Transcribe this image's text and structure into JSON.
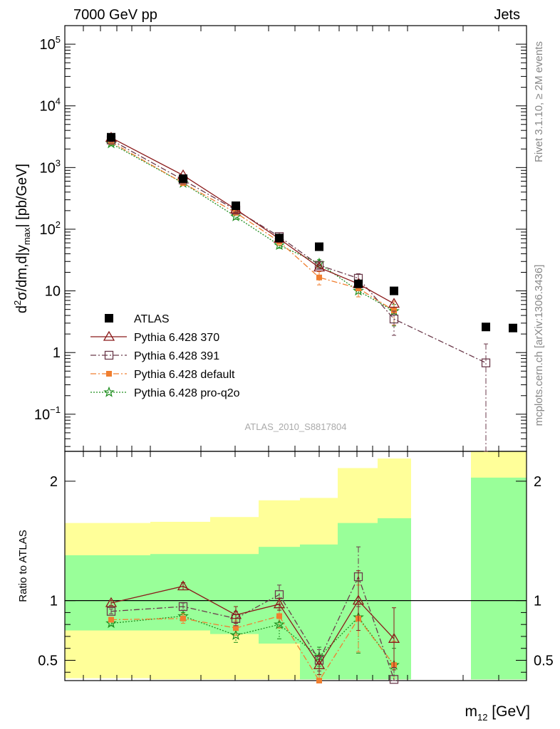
{
  "header": {
    "energy_label": "7000 GeV pp",
    "category_label": "Jets"
  },
  "side_text": {
    "rivet": "Rivet 3.1.10, ≥ 2M events",
    "mcplots": "mcplots.cern.ch [arXiv:1306.3436]"
  },
  "analysis_id": "ATLAS_2010_S8817804",
  "colors": {
    "atlas": "#000000",
    "p370": "#8b1a1a",
    "p391": "#6b3a4b",
    "pdefault": "#f07f30",
    "pq2o": "#1f8f1f",
    "band_yellow": "#ffff99",
    "band_green": "#99ff99"
  },
  "chart_data": [
    {
      "type": "scatter",
      "panel": "main",
      "ylabel_parts": {
        "a": "d",
        "b": "2",
        "c": "σ/dm,d|y",
        "d": "max",
        "e": "| [pb/GeV]"
      },
      "yscale": "log",
      "ylim": [
        0.025,
        200000
      ],
      "y_ticks": [
        {
          "value": 100000,
          "base": "10",
          "exp": "5"
        },
        {
          "value": 10000,
          "base": "10",
          "exp": "4"
        },
        {
          "value": 1000,
          "base": "10",
          "exp": "3"
        },
        {
          "value": 100,
          "base": "10",
          "exp": "2"
        },
        {
          "value": 10,
          "base": "10",
          "exp": ""
        },
        {
          "value": 1,
          "base": "1",
          "exp": ""
        },
        {
          "value": 0.1,
          "base": "10",
          "exp": "−1"
        }
      ],
      "x_bins": [
        1,
        2,
        3,
        4,
        5,
        6,
        7,
        8,
        9,
        10
      ],
      "legend": {
        "placement": "lower-left",
        "entries": [
          {
            "key": "atlas",
            "label": "ATLAS"
          },
          {
            "key": "p370",
            "label": "Pythia 6.428 370"
          },
          {
            "key": "p391",
            "label": "Pythia 6.428 391"
          },
          {
            "key": "pdefault",
            "label": "Pythia 6.428 default"
          },
          {
            "key": "pq2o",
            "label": "Pythia 6.428 pro-q2o"
          }
        ]
      },
      "series": [
        {
          "key": "atlas",
          "marker": "square-filled",
          "bins": [
            1,
            2,
            3,
            4,
            5,
            6,
            7,
            8,
            9
          ],
          "values": [
            3100,
            660,
            240,
            72,
            52,
            13,
            10,
            2.6,
            2.5
          ]
        },
        {
          "key": "p370",
          "marker": "triangle-open",
          "line": "solid",
          "bins": [
            1,
            2,
            3,
            4,
            5,
            6,
            7
          ],
          "values": [
            3050,
            750,
            210,
            70,
            24,
            13,
            6.2
          ]
        },
        {
          "key": "p391",
          "marker": "square-open",
          "line": "dashdot",
          "bins": [
            1,
            2,
            3,
            4,
            5,
            6,
            7,
            8
          ],
          "values": [
            2800,
            630,
            205,
            76,
            26,
            16,
            3.5,
            0.68
          ],
          "err_up": [
            200,
            40,
            15,
            7,
            3,
            3,
            1.2,
            0.7
          ],
          "err_down": [
            200,
            40,
            15,
            7,
            3,
            3,
            1.6,
            0.66
          ]
        },
        {
          "key": "pdefault",
          "marker": "square-small",
          "line": "dashdot",
          "bins": [
            1,
            2,
            3,
            4,
            5,
            6,
            7
          ],
          "values": [
            2600,
            560,
            185,
            63,
            16.5,
            11,
            4.8
          ],
          "err_up": [
            150,
            35,
            15,
            8,
            4,
            3,
            2
          ],
          "err_down": [
            150,
            35,
            15,
            8,
            4,
            3,
            2
          ]
        },
        {
          "key": "pq2o",
          "marker": "star",
          "line": "dotted",
          "bins": [
            1,
            2,
            3,
            4,
            5,
            6,
            7
          ],
          "values": [
            2450,
            560,
            160,
            55,
            28,
            10,
            4.7
          ],
          "err_up": [
            150,
            35,
            15,
            6,
            4,
            2,
            1.3
          ],
          "err_down": [
            150,
            35,
            15,
            6,
            4,
            2,
            2
          ]
        }
      ]
    },
    {
      "type": "scatter",
      "panel": "ratio",
      "ylabel": "Ratio to ATLAS",
      "ylim": [
        0.33,
        2.25
      ],
      "y_ticks": [
        {
          "value": 2,
          "label": "2"
        },
        {
          "value": 1,
          "label": "1"
        },
        {
          "value": 0.5,
          "label": "0.5"
        }
      ],
      "xlabel_parts": {
        "a": "m",
        "b": "12",
        "c": " [GeV]"
      },
      "reference_line": 1,
      "uncertainty_bands": [
        {
          "bin": 1,
          "yellow": [
            0.35,
            1.65
          ],
          "green": [
            0.75,
            1.38
          ]
        },
        {
          "bin": 2,
          "yellow": [
            0.34,
            1.66
          ],
          "green": [
            0.75,
            1.39
          ]
        },
        {
          "bin": 3,
          "yellow": [
            0.34,
            1.7
          ],
          "green": [
            0.72,
            1.39
          ]
        },
        {
          "bin": 4,
          "yellow": [
            0.34,
            1.84
          ],
          "green": [
            0.64,
            1.45
          ]
        },
        {
          "bin": 5,
          "yellow": [
            0.34,
            1.86
          ],
          "green": [
            0.34,
            1.47
          ]
        },
        {
          "bin": 6,
          "yellow": [
            0.34,
            2.11
          ],
          "green": [
            0.34,
            1.65
          ]
        },
        {
          "bin": 7,
          "yellow": [
            0.34,
            2.19
          ],
          "green": [
            0.34,
            1.69
          ]
        },
        {
          "bin": 9,
          "yellow": [
            0.34,
            2.25
          ],
          "green": [
            0.34,
            2.03
          ]
        }
      ],
      "series": [
        {
          "key": "p370",
          "marker": "triangle-open",
          "line": "solid",
          "bins": [
            1,
            2,
            3,
            4,
            5,
            6,
            7
          ],
          "values": [
            0.98,
            1.12,
            0.88,
            0.97,
            0.46,
            1.0,
            0.68
          ],
          "err_up": [
            0.02,
            0.03,
            0.07,
            0.05,
            0.08,
            0.25,
            0.26
          ],
          "err_down": [
            0.02,
            0.03,
            0.07,
            0.05,
            0.08,
            0.25,
            0.26
          ]
        },
        {
          "key": "p391",
          "marker": "square-open",
          "line": "dashdot",
          "bins": [
            1,
            2,
            3,
            4,
            5,
            6,
            7
          ],
          "values": [
            0.91,
            0.95,
            0.85,
            1.05,
            0.5,
            1.2,
            0.34
          ],
          "err_up": [
            0.02,
            0.03,
            0.06,
            0.08,
            0.09,
            0.25,
            0.1
          ],
          "err_down": [
            0.02,
            0.03,
            0.06,
            0.08,
            0.09,
            0.25,
            0.1
          ]
        },
        {
          "key": "pdefault",
          "marker": "square-small",
          "line": "dashdot",
          "bins": [
            1,
            2,
            3,
            4,
            5,
            6,
            7
          ],
          "values": [
            0.84,
            0.85,
            0.77,
            0.87,
            0.33,
            0.85,
            0.46
          ],
          "err_up": [
            0.02,
            0.04,
            0.06,
            0.1,
            0.05,
            0.28,
            0.2
          ],
          "err_down": [
            0.02,
            0.04,
            0.06,
            0.1,
            0.05,
            0.28,
            0.2
          ]
        },
        {
          "key": "pq2o",
          "marker": "star",
          "line": "dotted",
          "bins": [
            1,
            2,
            3,
            4,
            5,
            6,
            7
          ],
          "values": [
            0.81,
            0.87,
            0.71,
            0.8,
            0.53,
            0.86,
            0.46
          ],
          "err_up": [
            0.02,
            0.03,
            0.06,
            0.12,
            0.08,
            0.3,
            0.14
          ],
          "err_down": [
            0.02,
            0.03,
            0.06,
            0.12,
            0.08,
            0.3,
            0.14
          ]
        }
      ]
    }
  ]
}
